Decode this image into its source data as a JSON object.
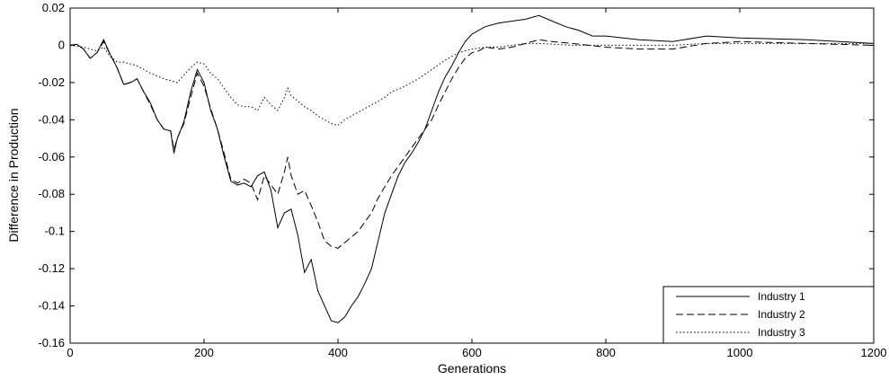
{
  "chart_data": {
    "type": "line",
    "xlabel": "Generations",
    "ylabel": "Difference in Production",
    "xlim": [
      0,
      1200
    ],
    "ylim": [
      -0.16,
      0.02
    ],
    "xticks": [
      {
        "value": 0,
        "label": "0"
      },
      {
        "value": 200,
        "label": "200"
      },
      {
        "value": 400,
        "label": "400"
      },
      {
        "value": 600,
        "label": "600"
      },
      {
        "value": 800,
        "label": "800"
      },
      {
        "value": 1000,
        "label": "1000"
      },
      {
        "value": 1200,
        "label": "1200"
      }
    ],
    "yticks": [
      {
        "value": 0.02,
        "label": "0.02"
      },
      {
        "value": 0,
        "label": "0"
      },
      {
        "value": -0.02,
        "label": "-0.02"
      },
      {
        "value": -0.04,
        "label": "-0.04"
      },
      {
        "value": -0.06,
        "label": "-0.06"
      },
      {
        "value": -0.08,
        "label": "-0.08"
      },
      {
        "value": -0.1,
        "label": "-0.1"
      },
      {
        "value": -0.12,
        "label": "-0.12"
      },
      {
        "value": -0.14,
        "label": "-0.14"
      },
      {
        "value": -0.16,
        "label": "-0.16"
      }
    ],
    "grid": false,
    "legend_position": "bottom-right",
    "series": [
      {
        "name": "Industry 1",
        "style": "solid",
        "color": "#000000",
        "points": [
          [
            0,
            0
          ],
          [
            10,
            0.0005
          ],
          [
            20,
            -0.002
          ],
          [
            30,
            -0.007
          ],
          [
            40,
            -0.004
          ],
          [
            50,
            0.003
          ],
          [
            60,
            -0.005
          ],
          [
            70,
            -0.012
          ],
          [
            80,
            -0.021
          ],
          [
            90,
            -0.02
          ],
          [
            100,
            -0.018
          ],
          [
            110,
            -0.025
          ],
          [
            120,
            -0.031
          ],
          [
            130,
            -0.04
          ],
          [
            140,
            -0.045
          ],
          [
            150,
            -0.046
          ],
          [
            155,
            -0.058
          ],
          [
            160,
            -0.05
          ],
          [
            170,
            -0.041
          ],
          [
            180,
            -0.025
          ],
          [
            190,
            -0.013
          ],
          [
            200,
            -0.02
          ],
          [
            210,
            -0.035
          ],
          [
            220,
            -0.045
          ],
          [
            230,
            -0.06
          ],
          [
            240,
            -0.073
          ],
          [
            250,
            -0.075
          ],
          [
            260,
            -0.074
          ],
          [
            270,
            -0.076
          ],
          [
            280,
            -0.07
          ],
          [
            290,
            -0.068
          ],
          [
            300,
            -0.078
          ],
          [
            310,
            -0.098
          ],
          [
            320,
            -0.09
          ],
          [
            330,
            -0.088
          ],
          [
            340,
            -0.102
          ],
          [
            350,
            -0.122
          ],
          [
            360,
            -0.115
          ],
          [
            370,
            -0.132
          ],
          [
            380,
            -0.14
          ],
          [
            390,
            -0.148
          ],
          [
            400,
            -0.149
          ],
          [
            410,
            -0.146
          ],
          [
            420,
            -0.14
          ],
          [
            430,
            -0.135
          ],
          [
            440,
            -0.128
          ],
          [
            450,
            -0.12
          ],
          [
            460,
            -0.105
          ],
          [
            470,
            -0.09
          ],
          [
            480,
            -0.08
          ],
          [
            490,
            -0.07
          ],
          [
            500,
            -0.063
          ],
          [
            510,
            -0.058
          ],
          [
            520,
            -0.052
          ],
          [
            530,
            -0.045
          ],
          [
            540,
            -0.035
          ],
          [
            550,
            -0.025
          ],
          [
            560,
            -0.017
          ],
          [
            570,
            -0.011
          ],
          [
            580,
            -0.004
          ],
          [
            590,
            0.002
          ],
          [
            600,
            0.006
          ],
          [
            620,
            0.01
          ],
          [
            640,
            0.012
          ],
          [
            660,
            0.013
          ],
          [
            680,
            0.014
          ],
          [
            700,
            0.016
          ],
          [
            720,
            0.013
          ],
          [
            740,
            0.01
          ],
          [
            760,
            0.008
          ],
          [
            780,
            0.005
          ],
          [
            800,
            0.005
          ],
          [
            850,
            0.003
          ],
          [
            900,
            0.002
          ],
          [
            950,
            0.005
          ],
          [
            1000,
            0.004
          ],
          [
            1100,
            0.003
          ],
          [
            1200,
            0.001
          ]
        ]
      },
      {
        "name": "Industry 2",
        "style": "dashed",
        "color": "#000000",
        "points": [
          [
            0,
            0
          ],
          [
            10,
            0.0005
          ],
          [
            20,
            -0.002
          ],
          [
            30,
            -0.007
          ],
          [
            40,
            -0.004
          ],
          [
            50,
            0.002
          ],
          [
            60,
            -0.005
          ],
          [
            70,
            -0.012
          ],
          [
            80,
            -0.021
          ],
          [
            90,
            -0.02
          ],
          [
            100,
            -0.018
          ],
          [
            110,
            -0.025
          ],
          [
            120,
            -0.032
          ],
          [
            130,
            -0.04
          ],
          [
            140,
            -0.045
          ],
          [
            150,
            -0.046
          ],
          [
            155,
            -0.056
          ],
          [
            160,
            -0.05
          ],
          [
            170,
            -0.042
          ],
          [
            180,
            -0.028
          ],
          [
            190,
            -0.015
          ],
          [
            200,
            -0.022
          ],
          [
            210,
            -0.034
          ],
          [
            220,
            -0.045
          ],
          [
            230,
            -0.058
          ],
          [
            240,
            -0.072
          ],
          [
            250,
            -0.074
          ],
          [
            260,
            -0.072
          ],
          [
            270,
            -0.074
          ],
          [
            280,
            -0.083
          ],
          [
            290,
            -0.07
          ],
          [
            300,
            -0.075
          ],
          [
            310,
            -0.08
          ],
          [
            320,
            -0.068
          ],
          [
            325,
            -0.06
          ],
          [
            330,
            -0.07
          ],
          [
            340,
            -0.08
          ],
          [
            350,
            -0.078
          ],
          [
            360,
            -0.086
          ],
          [
            370,
            -0.095
          ],
          [
            380,
            -0.105
          ],
          [
            390,
            -0.108
          ],
          [
            400,
            -0.109
          ],
          [
            410,
            -0.106
          ],
          [
            420,
            -0.103
          ],
          [
            430,
            -0.1
          ],
          [
            440,
            -0.095
          ],
          [
            450,
            -0.09
          ],
          [
            460,
            -0.082
          ],
          [
            470,
            -0.076
          ],
          [
            480,
            -0.07
          ],
          [
            490,
            -0.065
          ],
          [
            500,
            -0.06
          ],
          [
            520,
            -0.05
          ],
          [
            540,
            -0.04
          ],
          [
            550,
            -0.032
          ],
          [
            560,
            -0.025
          ],
          [
            570,
            -0.018
          ],
          [
            580,
            -0.012
          ],
          [
            590,
            -0.007
          ],
          [
            600,
            -0.004
          ],
          [
            610,
            -0.003
          ],
          [
            620,
            -0.001
          ],
          [
            640,
            -0.002
          ],
          [
            660,
            -0.001
          ],
          [
            680,
            0.001
          ],
          [
            700,
            0.003
          ],
          [
            720,
            0.002
          ],
          [
            750,
            0.001
          ],
          [
            800,
            -0.001
          ],
          [
            850,
            -0.002
          ],
          [
            900,
            -0.002
          ],
          [
            950,
            0.001
          ],
          [
            1000,
            0.002
          ],
          [
            1100,
            0.001
          ],
          [
            1200,
            0
          ]
        ]
      },
      {
        "name": "Industry 3",
        "style": "dotted",
        "color": "#000000",
        "points": [
          [
            0,
            0
          ],
          [
            20,
            -0.001
          ],
          [
            40,
            -0.003
          ],
          [
            50,
            -0.001
          ],
          [
            60,
            -0.006
          ],
          [
            70,
            -0.009
          ],
          [
            80,
            -0.009
          ],
          [
            100,
            -0.011
          ],
          [
            120,
            -0.015
          ],
          [
            140,
            -0.018
          ],
          [
            160,
            -0.02
          ],
          [
            170,
            -0.016
          ],
          [
            180,
            -0.012
          ],
          [
            190,
            -0.009
          ],
          [
            200,
            -0.01
          ],
          [
            210,
            -0.015
          ],
          [
            220,
            -0.018
          ],
          [
            230,
            -0.023
          ],
          [
            240,
            -0.028
          ],
          [
            250,
            -0.032
          ],
          [
            260,
            -0.033
          ],
          [
            270,
            -0.033
          ],
          [
            280,
            -0.035
          ],
          [
            290,
            -0.028
          ],
          [
            300,
            -0.032
          ],
          [
            310,
            -0.035
          ],
          [
            320,
            -0.028
          ],
          [
            325,
            -0.023
          ],
          [
            330,
            -0.027
          ],
          [
            340,
            -0.03
          ],
          [
            350,
            -0.033
          ],
          [
            360,
            -0.035
          ],
          [
            370,
            -0.038
          ],
          [
            380,
            -0.04
          ],
          [
            390,
            -0.042
          ],
          [
            400,
            -0.043
          ],
          [
            410,
            -0.04
          ],
          [
            420,
            -0.038
          ],
          [
            430,
            -0.036
          ],
          [
            440,
            -0.034
          ],
          [
            450,
            -0.032
          ],
          [
            460,
            -0.03
          ],
          [
            470,
            -0.028
          ],
          [
            480,
            -0.025
          ],
          [
            500,
            -0.022
          ],
          [
            520,
            -0.018
          ],
          [
            540,
            -0.013
          ],
          [
            560,
            -0.008
          ],
          [
            580,
            -0.004
          ],
          [
            600,
            -0.002
          ],
          [
            620,
            -0.001
          ],
          [
            640,
            -0.001
          ],
          [
            660,
            0
          ],
          [
            680,
            0.001
          ],
          [
            700,
            0.001
          ],
          [
            750,
            0
          ],
          [
            800,
            0
          ],
          [
            850,
            0
          ],
          [
            900,
            0
          ],
          [
            950,
            0.001
          ],
          [
            1000,
            0.001
          ],
          [
            1100,
            0.001
          ],
          [
            1200,
            0.001
          ]
        ]
      }
    ]
  }
}
